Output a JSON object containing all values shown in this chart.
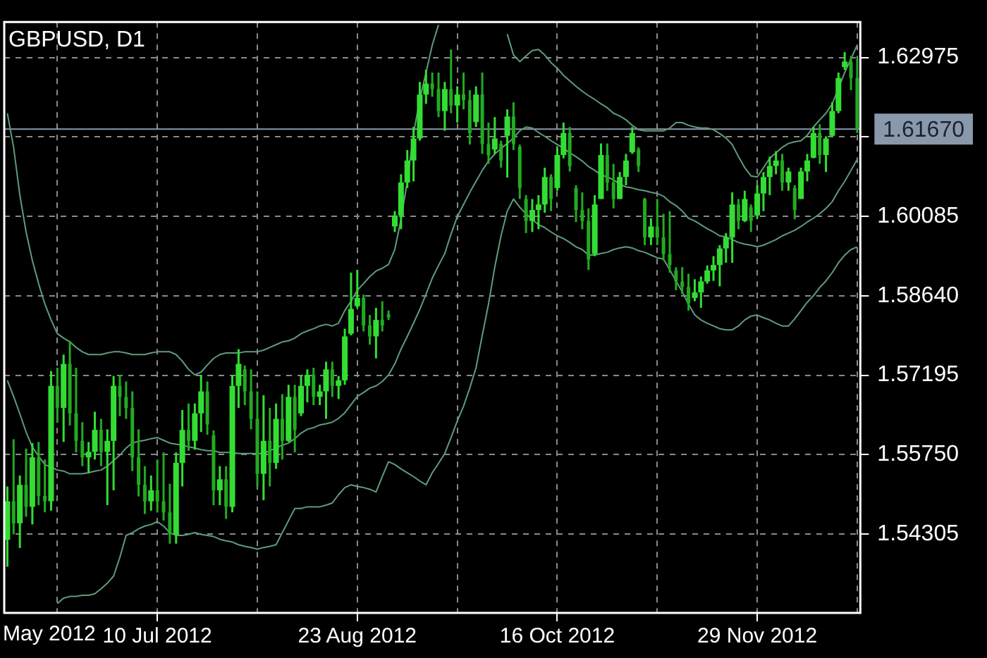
{
  "chart_data": {
    "type": "candlestick",
    "title": "GBPUSD, D1",
    "colors": [
      "#33dd33",
      "#22aa22",
      "#33dd33",
      "#22aa22",
      "#33dd33",
      "#22aa22",
      "#22aa22",
      "#33dd33",
      "#22aa22",
      "#33dd33",
      "#22aa22",
      "#22aa22",
      "#22aa22",
      "#33dd33",
      "#33dd33",
      "#22aa22",
      "#33dd33",
      "#33dd33",
      "#22aa22",
      "#22aa22",
      "#22aa22",
      "#22aa22",
      "#22aa22",
      "#33dd33",
      "#22aa22",
      "#22aa22",
      "#22aa22",
      "#33dd33",
      "#33dd33",
      "#22aa22",
      "#33dd33",
      "#33dd33",
      "#22aa22",
      "#22aa22",
      "#33dd33",
      "#22aa22",
      "#33dd33",
      "#33dd33",
      "#22aa22",
      "#22aa22",
      "#22aa22",
      "#33dd33",
      "#22aa22",
      "#33dd33",
      "#22aa22",
      "#33dd33",
      "#22aa22",
      "#33dd33",
      "#33dd33",
      "#22aa22",
      "#33dd33",
      "#33dd33",
      "#22aa22",
      "#33dd33",
      "#33dd33",
      "#33dd33",
      "#33dd33",
      "#22aa22",
      "#22aa22",
      "#33dd33",
      "#22aa22",
      "#22aa22",
      "#33dd33",
      "#33dd33",
      "#33dd33",
      "#33dd33",
      "#33dd33",
      "#33dd33",
      "#22aa22",
      "#22aa22",
      "#33dd33",
      "#22aa22",
      "#33dd33",
      "#22aa22",
      "#22aa22",
      "#33dd33",
      "#22aa22",
      "#22aa22",
      "#33dd33",
      "#22aa22",
      "#33dd33",
      "#22aa22",
      "#22aa22",
      "#22aa22",
      "#33dd33",
      "#33dd33",
      "#33dd33",
      "#22aa22",
      "#33dd33",
      "#33dd33",
      "#22aa22",
      "#22aa22",
      "#22aa22",
      "#22aa22",
      "#33dd33",
      "#33dd33",
      "#22aa22",
      "#22aa22",
      "#33dd33",
      "#33dd33",
      "#33dd33",
      "#22aa22",
      "#22aa22",
      "#33dd33",
      "#22aa22",
      "#22aa22",
      "#22aa22",
      "#22aa22",
      "#22aa22",
      "#22aa22",
      "#33dd33",
      "#33dd33",
      "#33dd33",
      "#33dd33",
      "#33dd33",
      "#33dd33",
      "#33dd33",
      "#22aa22",
      "#33dd33",
      "#22aa22",
      "#33dd33",
      "#33dd33",
      "#33dd33",
      "#33dd33",
      "#22aa22",
      "#33dd33",
      "#22aa22",
      "#33dd33",
      "#33dd33",
      "#33dd33",
      "#22aa22",
      "#33dd33",
      "#33dd33",
      "#33dd33",
      "#33dd33",
      "#22aa22",
      "#22aa22"
    ],
    "categories": [
      null,
      null,
      null,
      null,
      null,
      null,
      null,
      null,
      null,
      null,
      null,
      null,
      null,
      null,
      null,
      null,
      null,
      null,
      null,
      null,
      null,
      null,
      null,
      null,
      "10 Jul 2012",
      null,
      null,
      null,
      null,
      null,
      null,
      null,
      null,
      null,
      null,
      null,
      null,
      null,
      null,
      null,
      null,
      null,
      null,
      null,
      null,
      null,
      null,
      null,
      null,
      null,
      null,
      null,
      null,
      null,
      null,
      null,
      "23 Aug 2012",
      null,
      null,
      null,
      null,
      null,
      null,
      null,
      null,
      null,
      null,
      null,
      null,
      null,
      null,
      null,
      null,
      null,
      null,
      null,
      null,
      null,
      null,
      null,
      null,
      null,
      null,
      null,
      null,
      null,
      null,
      null,
      "16 Oct 2012",
      null,
      null,
      null,
      null,
      null,
      null,
      null,
      null,
      null,
      null,
      null,
      null,
      null,
      null,
      null,
      null,
      null,
      null,
      null,
      null,
      null,
      null,
      null,
      null,
      null,
      null,
      null,
      null,
      null,
      null,
      null,
      "29 Nov 2012",
      null,
      null,
      null,
      null,
      null,
      null,
      null,
      null,
      null,
      null,
      null,
      null,
      null,
      null,
      null,
      null
    ],
    "ohlc": [
      [
        1.542,
        1.5517,
        1.5371,
        1.549
      ],
      [
        1.549,
        1.5603,
        1.543,
        1.545
      ],
      [
        1.545,
        1.5537,
        1.5405,
        1.552
      ],
      [
        1.552,
        1.5586,
        1.5462,
        1.548
      ],
      [
        1.548,
        1.5596,
        1.5448,
        1.557
      ],
      [
        1.557,
        1.5598,
        1.5483,
        1.55
      ],
      [
        1.55,
        1.5566,
        1.547,
        1.549
      ],
      [
        1.549,
        1.5727,
        1.5473,
        1.57
      ],
      [
        1.57,
        1.5733,
        1.5633,
        1.566
      ],
      [
        1.566,
        1.5757,
        1.5598,
        1.574
      ],
      [
        1.574,
        1.5782,
        1.5628,
        1.565
      ],
      [
        1.565,
        1.5733,
        1.5579,
        1.56
      ],
      [
        1.56,
        1.5634,
        1.5554,
        1.557
      ],
      [
        1.557,
        1.5598,
        1.5541,
        1.558
      ],
      [
        1.558,
        1.5653,
        1.5566,
        1.562
      ],
      [
        1.562,
        1.564,
        1.5554,
        1.558
      ],
      [
        1.558,
        1.5621,
        1.5483,
        1.56
      ],
      [
        1.56,
        1.5718,
        1.551,
        1.57
      ],
      [
        1.57,
        1.572,
        1.5645,
        1.568
      ],
      [
        1.568,
        1.5708,
        1.564,
        1.566
      ],
      [
        1.566,
        1.569,
        1.5545,
        1.557
      ],
      [
        1.557,
        1.5621,
        1.5499,
        1.552
      ],
      [
        1.552,
        1.5554,
        1.5467,
        1.549
      ],
      [
        1.549,
        1.5537,
        1.5473,
        1.551
      ],
      [
        1.551,
        1.5566,
        1.547,
        1.549
      ],
      [
        1.549,
        1.5579,
        1.5455,
        1.547
      ],
      [
        1.547,
        1.5522,
        1.5413,
        1.543
      ],
      [
        1.543,
        1.5579,
        1.5413,
        1.556
      ],
      [
        1.556,
        1.5656,
        1.5517,
        1.562
      ],
      [
        1.562,
        1.5668,
        1.5582,
        1.56
      ],
      [
        1.56,
        1.5668,
        1.5584,
        1.565
      ],
      [
        1.565,
        1.572,
        1.5616,
        1.569
      ],
      [
        1.569,
        1.5708,
        1.5611,
        1.563
      ],
      [
        1.561,
        1.5619,
        1.5483,
        1.551
      ],
      [
        1.551,
        1.5554,
        1.5483,
        1.553
      ],
      [
        1.553,
        1.5554,
        1.5458,
        1.548
      ],
      [
        1.548,
        1.572,
        1.547,
        1.57
      ],
      [
        1.57,
        1.5767,
        1.566,
        1.574
      ],
      [
        1.573,
        1.5737,
        1.5665,
        1.569
      ],
      [
        1.569,
        1.573,
        1.5621,
        1.564
      ],
      [
        1.564,
        1.569,
        1.5517,
        1.554
      ],
      [
        1.554,
        1.5683,
        1.5492,
        1.56
      ],
      [
        1.56,
        1.566,
        1.5517,
        1.556
      ],
      [
        1.556,
        1.5668,
        1.5549,
        1.564
      ],
      [
        1.564,
        1.5685,
        1.5566,
        1.56
      ],
      [
        1.56,
        1.5702,
        1.5598,
        1.568
      ],
      [
        1.568,
        1.5702,
        1.5579,
        1.562
      ],
      [
        1.565,
        1.5718,
        1.5645,
        1.57
      ],
      [
        1.57,
        1.573,
        1.567,
        1.572
      ],
      [
        1.572,
        1.5733,
        1.5665,
        1.568
      ],
      [
        1.568,
        1.5702,
        1.5665,
        1.569
      ],
      [
        1.569,
        1.5744,
        1.564,
        1.573
      ],
      [
        1.573,
        1.5744,
        1.568,
        1.57
      ],
      [
        1.57,
        1.5718,
        1.5676,
        1.571
      ],
      [
        1.571,
        1.5804,
        1.5702,
        1.579
      ],
      [
        1.5795,
        1.5906,
        1.5792,
        1.584
      ],
      [
        1.5845,
        1.5911,
        1.5842,
        1.586
      ],
      [
        1.586,
        1.5866,
        1.5799,
        1.581
      ],
      [
        1.581,
        1.5829,
        1.5775,
        1.579
      ],
      [
        1.579,
        1.5842,
        1.575,
        1.582
      ],
      [
        1.582,
        1.5854,
        1.5799,
        1.581
      ],
      [
        1.583,
        1.5837,
        1.582,
        1.5825
      ],
      [
        1.599,
        1.6018,
        1.598,
        1.601
      ],
      [
        1.601,
        1.6085,
        1.5985,
        1.607
      ],
      [
        1.607,
        1.6129,
        1.606,
        1.611
      ],
      [
        1.611,
        1.6171,
        1.6072,
        1.615
      ],
      [
        1.615,
        1.6253,
        1.6146,
        1.623
      ],
      [
        1.623,
        1.6275,
        1.6213,
        1.625
      ],
      [
        1.625,
        1.627,
        1.6226,
        1.624
      ],
      [
        1.624,
        1.627,
        1.6189,
        1.62
      ],
      [
        1.62,
        1.6253,
        1.6164,
        1.624
      ],
      [
        1.624,
        1.6312,
        1.6196,
        1.621
      ],
      [
        1.621,
        1.6245,
        1.6179,
        1.623
      ],
      [
        1.623,
        1.627,
        1.6203,
        1.622
      ],
      [
        1.622,
        1.6238,
        1.6139,
        1.616
      ],
      [
        1.618,
        1.6245,
        1.6171,
        1.623
      ],
      [
        1.623,
        1.627,
        1.6122,
        1.614
      ],
      [
        1.614,
        1.6179,
        1.6104,
        1.612
      ],
      [
        1.613,
        1.6189,
        1.6122,
        1.615
      ],
      [
        1.614,
        1.6146,
        1.6097,
        1.611
      ],
      [
        1.6155,
        1.6203,
        1.6079,
        1.619
      ],
      [
        1.619,
        1.6216,
        1.6129,
        1.614
      ],
      [
        1.6135,
        1.6139,
        1.604,
        1.606
      ],
      [
        1.604,
        1.6047,
        1.5978,
        1.6
      ],
      [
        1.6,
        1.604,
        1.598,
        1.602
      ],
      [
        1.602,
        1.6047,
        1.5985,
        1.603
      ],
      [
        1.603,
        1.6097,
        1.6015,
        1.608
      ],
      [
        1.608,
        1.6085,
        1.6018,
        1.604
      ],
      [
        1.606,
        1.6134,
        1.6055,
        1.612
      ],
      [
        1.612,
        1.6179,
        1.6114,
        1.616
      ],
      [
        1.616,
        1.6171,
        1.609,
        1.61
      ],
      [
        1.606,
        1.6065,
        1.5998,
        1.602
      ],
      [
        1.602,
        1.6052,
        1.5985,
        1.6
      ],
      [
        1.6,
        1.6023,
        1.5911,
        1.593
      ],
      [
        1.594,
        1.6047,
        1.5936,
        1.603
      ],
      [
        1.604,
        1.6141,
        1.604,
        1.612
      ],
      [
        1.612,
        1.6141,
        1.6055,
        1.607
      ],
      [
        1.607,
        1.6104,
        1.6023,
        1.604
      ],
      [
        1.604,
        1.6089,
        1.604,
        1.608
      ],
      [
        1.608,
        1.6122,
        1.6065,
        1.611
      ],
      [
        1.6125,
        1.6171,
        1.6122,
        1.616
      ],
      [
        1.613,
        1.6134,
        1.6089,
        1.61
      ],
      [
        1.604,
        1.6042,
        1.5956,
        1.597
      ],
      [
        1.597,
        1.6005,
        1.5956,
        1.599
      ],
      [
        1.599,
        1.604,
        1.5956,
        1.597
      ],
      [
        1.597,
        1.6013,
        1.5928,
        1.594
      ],
      [
        1.594,
        1.6018,
        1.5906,
        1.592
      ],
      [
        1.591,
        1.5916,
        1.5874,
        1.589
      ],
      [
        1.589,
        1.5916,
        1.5867,
        1.588
      ],
      [
        1.588,
        1.5904,
        1.5837,
        1.585
      ],
      [
        1.586,
        1.5894,
        1.5854,
        1.587
      ],
      [
        1.587,
        1.5899,
        1.5842,
        1.589
      ],
      [
        1.589,
        1.5919,
        1.5886,
        1.591
      ],
      [
        1.591,
        1.5936,
        1.5891,
        1.592
      ],
      [
        1.592,
        1.5956,
        1.5881,
        1.595
      ],
      [
        1.595,
        1.5978,
        1.5924,
        1.597
      ],
      [
        1.597,
        1.6052,
        1.5924,
        1.603
      ],
      [
        1.603,
        1.604,
        1.5985,
        1.6
      ],
      [
        1.6,
        1.6055,
        1.5998,
        1.604
      ],
      [
        1.6025,
        1.603,
        1.598,
        1.6
      ],
      [
        1.601,
        1.6065,
        1.6005,
        1.605
      ],
      [
        1.605,
        1.6089,
        1.6018,
        1.608
      ],
      [
        1.608,
        1.6117,
        1.6047,
        1.61
      ],
      [
        1.61,
        1.6127,
        1.6085,
        1.611
      ],
      [
        1.611,
        1.6122,
        1.6055,
        1.607
      ],
      [
        1.607,
        1.6097,
        1.6055,
        1.609
      ],
      [
        1.606,
        1.6065,
        1.6003,
        1.602
      ],
      [
        1.604,
        1.6097,
        1.604,
        1.609
      ],
      [
        1.609,
        1.6122,
        1.6072,
        1.611
      ],
      [
        1.6115,
        1.6171,
        1.6114,
        1.616
      ],
      [
        1.616,
        1.6176,
        1.6104,
        1.612
      ],
      [
        1.612,
        1.6154,
        1.6089,
        1.615
      ],
      [
        1.6155,
        1.6216,
        1.6154,
        1.62
      ],
      [
        1.62,
        1.627,
        1.6196,
        1.626
      ],
      [
        1.628,
        1.6307,
        1.6275,
        1.629
      ],
      [
        1.629,
        1.63,
        1.6238,
        1.626
      ],
      [
        1.626,
        1.6295,
        1.616,
        1.6167
      ]
    ],
    "series": [
      {
        "type": "line",
        "color": "#5e9c7a",
        "values": [
          1.6196,
          1.6134,
          1.6047,
          1.598,
          1.5928,
          1.5886,
          1.5849,
          1.582,
          1.5795,
          1.5787,
          1.578,
          1.577,
          1.5762,
          1.5757,
          1.5757,
          1.5757,
          1.576,
          1.5762,
          1.5762,
          1.576,
          1.5757,
          1.5757,
          1.5757,
          1.576,
          1.5762,
          1.5762,
          1.5762,
          1.5757,
          1.5745,
          1.573,
          1.572,
          1.5725,
          1.5738,
          1.575,
          1.5757,
          1.576,
          1.576,
          1.576,
          1.5762,
          1.5762,
          1.5762,
          1.5765,
          1.577,
          1.5775,
          1.578,
          1.5782,
          1.5787,
          1.5795,
          1.58,
          1.5804,
          1.5809,
          1.5812,
          1.5809,
          1.5814,
          1.5837,
          1.5854,
          1.5874,
          1.5886,
          1.5899,
          1.5909,
          1.5914,
          1.5921,
          1.5948,
          1.6003,
          1.6072,
          1.6159,
          1.6221,
          1.627,
          1.632,
          1.6357,
          null,
          null,
          null,
          null,
          null,
          null,
          null,
          null,
          null,
          null,
          1.634,
          1.6302,
          1.629,
          1.63,
          1.631,
          1.6312,
          1.6302,
          1.6288,
          1.6278,
          1.6265,
          1.6255,
          1.6245,
          1.6236,
          1.6228,
          1.6221,
          1.6213,
          1.6206,
          1.6196,
          1.6191,
          1.6184,
          1.6174,
          1.6166,
          1.6164,
          1.6164,
          1.6164,
          1.6164,
          1.6169,
          1.6179,
          1.6179,
          1.6174,
          1.6171,
          1.6169,
          1.6169,
          1.6166,
          1.6159,
          1.6151,
          1.6139,
          1.6117,
          1.6097,
          1.6082,
          1.608,
          1.6097,
          1.6114,
          1.6124,
          1.6134,
          1.6141,
          1.6144,
          1.6146,
          1.6156,
          1.6171,
          1.6184,
          1.6196,
          1.6213,
          1.6241,
          1.627,
          1.6295,
          1.632
        ]
      },
      {
        "type": "line",
        "color": "#5e9c7a",
        "values": [
          1.571,
          1.5681,
          1.5649,
          1.5616,
          1.5589,
          1.5572,
          1.5557,
          1.5552,
          1.5547,
          1.5545,
          1.554,
          1.554,
          1.554,
          1.5542,
          1.5545,
          1.5547,
          1.5554,
          1.5564,
          1.5574,
          1.5587,
          1.5596,
          1.5599,
          1.5601,
          1.5604,
          1.5606,
          1.5601,
          1.5596,
          1.5594,
          1.5592,
          1.5589,
          1.5587,
          1.5584,
          1.5582,
          1.5582,
          1.5579,
          1.5579,
          1.5579,
          1.5577,
          1.5577,
          1.5577,
          1.5577,
          1.5577,
          1.5582,
          1.5587,
          1.5592,
          1.5596,
          1.5604,
          1.5614,
          1.5621,
          1.5624,
          1.5629,
          1.5631,
          1.5634,
          1.5641,
          1.5651,
          1.5666,
          1.5681,
          1.5688,
          1.5696,
          1.57,
          1.5708,
          1.572,
          1.574,
          1.5767,
          1.579,
          1.5814,
          1.5839,
          1.5867,
          1.5896,
          1.5919,
          1.5941,
          1.5976,
          1.6008,
          1.603,
          1.6052,
          1.6072,
          1.6092,
          1.6109,
          1.6122,
          1.6132,
          1.6141,
          1.6151,
          1.6164,
          1.6171,
          1.6169,
          1.6161,
          1.6154,
          1.6146,
          1.6139,
          1.6132,
          1.6124,
          1.6117,
          1.6109,
          1.6099,
          1.6092,
          1.6084,
          1.608,
          1.6075,
          1.6067,
          1.6062,
          1.606,
          1.6057,
          1.6055,
          1.6052,
          1.605,
          1.6045,
          1.6035,
          1.6028,
          1.6018,
          1.6005,
          1.6,
          1.5993,
          1.5986,
          1.598,
          1.5973,
          1.5971,
          1.5966,
          1.5961,
          1.5958,
          1.5956,
          1.5953,
          1.5956,
          1.5961,
          1.5966,
          1.5973,
          1.5978,
          1.5983,
          1.599,
          1.5998,
          1.6005,
          1.6013,
          1.6023,
          1.6035,
          1.6055,
          1.6072,
          1.6092,
          1.6112
        ]
      },
      {
        "type": "line",
        "color": "#5e9c7a",
        "values": [
          null,
          null,
          null,
          null,
          null,
          null,
          null,
          null,
          1.5304,
          1.5314,
          1.5317,
          1.5317,
          1.5319,
          1.5319,
          1.5322,
          1.5331,
          1.5341,
          1.5354,
          1.5388,
          1.5428,
          1.5433,
          1.544,
          1.5445,
          1.5448,
          1.5453,
          1.5445,
          1.5433,
          1.5428,
          1.5428,
          1.543,
          1.5433,
          1.543,
          1.5428,
          1.5426,
          1.5421,
          1.5418,
          1.5416,
          1.5411,
          1.5408,
          1.5406,
          1.5403,
          1.5406,
          1.5408,
          1.5411,
          1.5433,
          1.5455,
          1.5477,
          1.5477,
          1.548,
          1.548,
          1.548,
          1.5483,
          1.5487,
          1.5502,
          1.5515,
          1.552,
          1.5517,
          1.5515,
          1.5512,
          1.5507,
          1.5535,
          1.5562,
          1.5557,
          1.5549,
          1.5542,
          1.5535,
          1.5527,
          1.552,
          1.5542,
          1.5559,
          1.5577,
          1.5606,
          1.5636,
          1.5663,
          1.5696,
          1.5733,
          1.5792,
          1.5849,
          1.5916,
          1.5973,
          1.6018,
          1.604,
          1.6025,
          1.6013,
          1.6003,
          1.5993,
          1.5988,
          1.598,
          1.5973,
          1.5968,
          1.5961,
          1.5953,
          1.5948,
          1.5938,
          1.5938,
          1.5941,
          1.5943,
          1.5948,
          1.5951,
          1.5953,
          1.5951,
          1.5946,
          1.5943,
          1.5938,
          1.5933,
          1.5931,
          1.5911,
          1.5891,
          1.5871,
          1.5849,
          1.5829,
          1.582,
          1.5814,
          1.5809,
          1.5804,
          1.5802,
          1.5802,
          1.5809,
          1.582,
          1.5827,
          1.5829,
          1.5824,
          1.582,
          1.5814,
          1.5809,
          1.5809,
          1.5822,
          1.5837,
          1.5852,
          1.5864,
          1.5879,
          1.5891,
          1.5906,
          1.5924,
          1.5938,
          1.5948,
          1.5953
        ]
      }
    ],
    "ylim": [
      1.5287,
      1.6362
    ],
    "yticks": [
      1.54305,
      {
        "value": 1.5575,
        "label": "1.55750"
      },
      1.57195,
      {
        "value": 1.5864,
        "label": "1.58640"
      },
      1.60085,
      {
        "value": 1.6153,
        "label": null
      },
      1.62975
    ],
    "grid": true,
    "ref_lines": [
      {
        "axis": "y",
        "value": 1.6167,
        "label": "1.61670",
        "color": "#8a98ab"
      }
    ],
    "annotations": [
      "May 2012"
    ]
  }
}
